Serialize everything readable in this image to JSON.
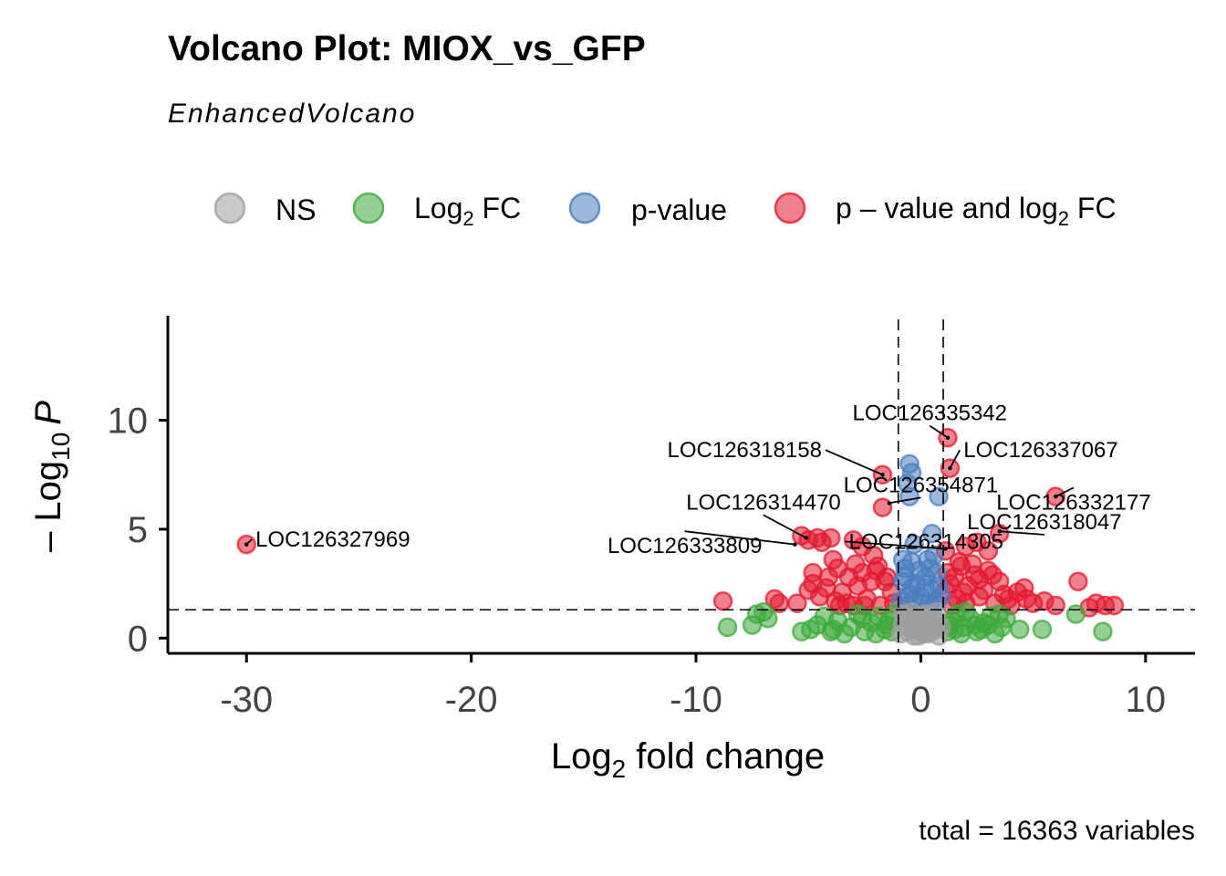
{
  "chart_data": {
    "type": "scatter",
    "title": "Volcano Plot: MIOX_vs_GFP",
    "subtitle": "EnhancedVolcano",
    "caption": "total = 16363 variables",
    "xlabel": {
      "base": "Log",
      "sub": "2",
      "rest": " fold change"
    },
    "ylabel": {
      "pre": "– Log",
      "sub": "10",
      "italic": "P"
    },
    "xlim": [
      -33.5,
      12.2
    ],
    "ylim": [
      -0.7,
      14.8
    ],
    "x_ticks": [
      -30,
      -20,
      -10,
      0,
      10
    ],
    "x_tick_labels": [
      "-30",
      "-20",
      "-10",
      "0",
      "10"
    ],
    "y_ticks": [
      0,
      5,
      10
    ],
    "y_tick_labels": [
      "0",
      "5",
      "10"
    ],
    "grid": false,
    "legend_position": "top",
    "fc_cutoff": 1,
    "p_cutoff_log10": 1.3,
    "legend": [
      {
        "key": "ns",
        "label": "NS",
        "color": "#9E9E9E"
      },
      {
        "key": "fc",
        "label": {
          "base": "Log",
          "sub": "2",
          "rest": " FC"
        },
        "color": "#3DAA3B"
      },
      {
        "key": "p",
        "label": "p-value",
        "color": "#4A7DC0"
      },
      {
        "key": "both",
        "label": {
          "base": "p – value and log",
          "sub": "2",
          "rest": " FC"
        },
        "color": "#E31A2F"
      }
    ],
    "series": [
      {
        "key": "both",
        "color": "#E31A2F",
        "points": [
          [
            -30.0,
            4.3
          ],
          [
            -1.7,
            7.5
          ],
          [
            -1.7,
            6.0
          ],
          [
            1.2,
            9.2
          ],
          [
            1.3,
            7.8
          ],
          [
            6.0,
            6.5
          ],
          [
            3.5,
            4.8
          ],
          [
            -5.0,
            4.5
          ],
          [
            -5.3,
            4.7
          ],
          [
            -4.6,
            4.6
          ],
          [
            -4.4,
            4.4
          ],
          [
            -4.0,
            4.6
          ],
          [
            -3.0,
            4.5
          ],
          [
            -2.6,
            4.2
          ],
          [
            1.1,
            4.0
          ],
          [
            2.0,
            4.2
          ],
          [
            2.5,
            4.4
          ],
          [
            3.0,
            4.0
          ],
          [
            -8.8,
            1.7
          ],
          [
            -6.5,
            1.8
          ],
          [
            -6.3,
            1.6
          ],
          [
            -5.5,
            1.6
          ],
          [
            -5.0,
            2.2
          ],
          [
            -4.8,
            3.0
          ],
          [
            -4.8,
            2.5
          ],
          [
            -4.5,
            1.9
          ],
          [
            -4.2,
            2.3
          ],
          [
            -3.8,
            1.7
          ],
          [
            -3.5,
            2.1
          ],
          [
            -3.3,
            1.6
          ],
          [
            -3.0,
            1.5
          ],
          [
            -3.2,
            2.8
          ],
          [
            -2.8,
            2.4
          ],
          [
            -2.6,
            3.0
          ],
          [
            -2.4,
            1.8
          ],
          [
            -2.2,
            2.6
          ],
          [
            -2.0,
            3.1
          ],
          [
            -1.8,
            1.5
          ],
          [
            -1.5,
            2.8
          ],
          [
            -1.3,
            2.1
          ],
          [
            -3.7,
            3.2
          ],
          [
            -2.9,
            3.4
          ],
          [
            -2.1,
            3.8
          ],
          [
            -1.9,
            3.3
          ],
          [
            -1.6,
            2.6
          ],
          [
            -1.2,
            1.6
          ],
          [
            -4.1,
            2.8
          ],
          [
            -3.9,
            3.6
          ],
          [
            1.2,
            3.0
          ],
          [
            1.3,
            2.5
          ],
          [
            1.5,
            2.8
          ],
          [
            1.6,
            1.8
          ],
          [
            1.8,
            3.3
          ],
          [
            2.0,
            1.6
          ],
          [
            2.1,
            2.4
          ],
          [
            2.3,
            3.4
          ],
          [
            2.4,
            2.9
          ],
          [
            2.6,
            1.9
          ],
          [
            2.8,
            2.2
          ],
          [
            3.0,
            3.1
          ],
          [
            3.3,
            1.6
          ],
          [
            3.5,
            2.6
          ],
          [
            3.7,
            2.0
          ],
          [
            4.0,
            1.5
          ],
          [
            4.3,
            2.1
          ],
          [
            4.7,
            1.8
          ],
          [
            5.0,
            1.6
          ],
          [
            5.5,
            1.7
          ],
          [
            6.0,
            1.5
          ],
          [
            7.0,
            2.6
          ],
          [
            7.5,
            1.4
          ],
          [
            7.8,
            1.6
          ],
          [
            8.2,
            1.5
          ],
          [
            8.6,
            1.5
          ],
          [
            1.4,
            1.5
          ],
          [
            1.9,
            2.1
          ],
          [
            2.6,
            2.7
          ],
          [
            3.2,
            2.9
          ],
          [
            3.9,
            1.8
          ],
          [
            1.1,
            2.2
          ],
          [
            1.7,
            3.5
          ],
          [
            4.6,
            2.3
          ],
          [
            -2.5,
            1.5
          ],
          [
            -3.6,
            1.5
          ]
        ]
      },
      {
        "key": "p",
        "color": "#4A7DC0",
        "points": [
          [
            -0.5,
            8.0
          ],
          [
            -0.4,
            7.6
          ],
          [
            -0.6,
            7.1
          ],
          [
            -0.5,
            6.5
          ],
          [
            0.8,
            6.5
          ],
          [
            0.5,
            4.8
          ],
          [
            -0.3,
            4.3
          ],
          [
            -0.7,
            3.2
          ],
          [
            -0.4,
            3.5
          ],
          [
            0.3,
            3.6
          ],
          [
            0.6,
            3.8
          ],
          [
            -0.8,
            2.6
          ],
          [
            -0.2,
            2.5
          ],
          [
            0.2,
            2.8
          ],
          [
            0.5,
            2.2
          ],
          [
            0.8,
            2.4
          ],
          [
            -0.5,
            2.0
          ],
          [
            0.0,
            1.9
          ],
          [
            0.4,
            1.6
          ],
          [
            -0.9,
            1.7
          ],
          [
            0.9,
            1.9
          ],
          [
            -0.6,
            1.5
          ],
          [
            0.6,
            1.5
          ],
          [
            -0.1,
            3.1
          ],
          [
            -0.3,
            1.8
          ],
          [
            0.2,
            2.3
          ],
          [
            -0.7,
            2.8
          ],
          [
            0.7,
            3.0
          ],
          [
            0.1,
            1.6
          ],
          [
            -0.4,
            2.3
          ],
          [
            0.4,
            3.2
          ],
          [
            -0.8,
            3.6
          ]
        ]
      },
      {
        "key": "fc",
        "color": "#3DAA3B",
        "points": [
          [
            -8.6,
            0.5
          ],
          [
            -7.5,
            0.6
          ],
          [
            -7.3,
            1.1
          ],
          [
            -7.0,
            1.2
          ],
          [
            -6.8,
            0.9
          ],
          [
            -5.3,
            0.3
          ],
          [
            -4.9,
            0.4
          ],
          [
            -4.6,
            0.6
          ],
          [
            -4.3,
            1.0
          ],
          [
            -4.0,
            0.3
          ],
          [
            -3.7,
            0.8
          ],
          [
            -3.4,
            0.2
          ],
          [
            -3.1,
            0.5
          ],
          [
            -2.8,
            1.1
          ],
          [
            -2.5,
            0.3
          ],
          [
            -2.2,
            0.7
          ],
          [
            -1.9,
            1.0
          ],
          [
            -1.6,
            0.4
          ],
          [
            -1.4,
            0.8
          ],
          [
            -1.2,
            1.1
          ],
          [
            -3.9,
            0.4
          ],
          [
            -2.0,
            0.2
          ],
          [
            -1.5,
            0.6
          ],
          [
            -2.6,
            0.9
          ],
          [
            1.2,
            0.3
          ],
          [
            1.4,
            0.8
          ],
          [
            1.6,
            1.1
          ],
          [
            1.9,
            0.5
          ],
          [
            2.2,
            0.9
          ],
          [
            2.5,
            0.3
          ],
          [
            2.8,
            0.7
          ],
          [
            3.1,
            1.0
          ],
          [
            3.3,
            0.2
          ],
          [
            3.6,
            0.5
          ],
          [
            3.8,
            0.9
          ],
          [
            2.0,
            1.2
          ],
          [
            1.3,
            0.6
          ],
          [
            1.8,
            0.2
          ],
          [
            2.7,
            0.4
          ],
          [
            3.0,
            0.6
          ],
          [
            4.4,
            0.4
          ],
          [
            5.4,
            0.4
          ],
          [
            6.9,
            1.1
          ],
          [
            8.1,
            0.3
          ],
          [
            2.4,
            0.6
          ],
          [
            3.5,
            1.1
          ],
          [
            1.5,
            0.4
          ],
          [
            -1.3,
            0.3
          ]
        ]
      },
      {
        "key": "ns",
        "color": "#9E9E9E",
        "points": [
          [
            -0.9,
            0.2
          ],
          [
            -0.8,
            0.6
          ],
          [
            -0.7,
            1.0
          ],
          [
            -0.6,
            0.3
          ],
          [
            -0.5,
            0.8
          ],
          [
            -0.4,
            1.2
          ],
          [
            -0.3,
            0.1
          ],
          [
            -0.2,
            0.5
          ],
          [
            -0.1,
            0.9
          ],
          [
            0.0,
            0.3
          ],
          [
            0.1,
            0.7
          ],
          [
            0.2,
            1.1
          ],
          [
            0.3,
            0.2
          ],
          [
            0.4,
            0.6
          ],
          [
            0.5,
            1.0
          ],
          [
            0.6,
            0.4
          ],
          [
            0.7,
            0.8
          ],
          [
            0.8,
            0.1
          ],
          [
            0.9,
            0.5
          ],
          [
            -0.6,
            0.9
          ],
          [
            0.2,
            0.4
          ],
          [
            -0.3,
            0.7
          ],
          [
            0.5,
            0.3
          ],
          [
            -0.1,
            0.1
          ],
          [
            0.0,
            1.0
          ],
          [
            0.3,
            0.9
          ],
          [
            -0.8,
            1.1
          ],
          [
            0.7,
            1.2
          ],
          [
            -0.4,
            0.4
          ],
          [
            0.1,
            0.2
          ]
        ]
      }
    ],
    "labels": [
      {
        "text": "LOC126327969",
        "point": [
          -30.0,
          4.3
        ],
        "at": [
          -29.6,
          4.2
        ],
        "anchor": "start"
      },
      {
        "text": "LOC126335342",
        "point": [
          1.2,
          9.2
        ],
        "at": [
          0.4,
          10.0
        ],
        "anchor": "middle"
      },
      {
        "text": "LOC126337067",
        "point": [
          1.3,
          7.8
        ],
        "at": [
          1.9,
          8.3
        ],
        "anchor": "start"
      },
      {
        "text": "LOC126318158",
        "point": [
          -1.7,
          7.5
        ],
        "at": [
          -4.4,
          8.3
        ],
        "anchor": "end"
      },
      {
        "text": "LOC126354871",
        "point": [
          -1.4,
          6.2
        ],
        "at": [
          0.0,
          6.7
        ],
        "anchor": "middle"
      },
      {
        "text": "LOC126332177",
        "point": [
          6.0,
          6.5
        ],
        "at": [
          6.8,
          5.9
        ],
        "anchor": "middle"
      },
      {
        "text": "LOC126314470",
        "point": [
          -5.1,
          4.6
        ],
        "at": [
          -7.0,
          5.9
        ],
        "anchor": "middle"
      },
      {
        "text": "LOC126318047",
        "point": [
          3.5,
          4.9
        ],
        "at": [
          5.5,
          5.0
        ],
        "anchor": "middle"
      },
      {
        "text": "LOC126333809",
        "point": [
          -5.6,
          4.3
        ],
        "at": [
          -10.5,
          3.9
        ],
        "anchor": "middle"
      },
      {
        "text": "LOC126314305",
        "point": [
          1.1,
          4.1
        ],
        "at": [
          -3.2,
          4.1
        ],
        "anchor": "start"
      }
    ]
  }
}
